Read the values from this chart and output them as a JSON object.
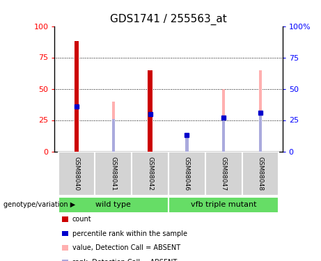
{
  "title": "GDS1741 / 255563_at",
  "samples": [
    "GSM88040",
    "GSM88041",
    "GSM88042",
    "GSM88046",
    "GSM88047",
    "GSM88048"
  ],
  "red_bars": [
    88,
    0,
    65,
    0,
    0,
    0
  ],
  "blue_markers": [
    36,
    0,
    30,
    13,
    27,
    31
  ],
  "pink_bars": [
    36,
    40,
    65,
    13,
    50,
    65
  ],
  "lightblue_bars": [
    36,
    26,
    30,
    13,
    27,
    31
  ],
  "ylim": [
    0,
    100
  ],
  "grid_lines": [
    25,
    50,
    75
  ],
  "red_color": "#CC0000",
  "blue_color": "#0000CC",
  "pink_color": "#FFB0B0",
  "lightblue_color": "#AAAADD",
  "red_bar_width": 0.12,
  "pink_bar_width": 0.08,
  "lightblue_bar_width": 0.08,
  "label_bg_color": "#D3D3D3",
  "group_bg_color": "#66DD66",
  "genotype_label": "genotype/variation",
  "left_yticks": [
    "0",
    "25",
    "50",
    "75",
    "100"
  ],
  "right_yticks": [
    "0",
    "25",
    "50",
    "75",
    "100%"
  ],
  "legend_items": [
    [
      "#CC0000",
      "count"
    ],
    [
      "#0000CC",
      "percentile rank within the sample"
    ],
    [
      "#FFB0B0",
      "value, Detection Call = ABSENT"
    ],
    [
      "#AAAADD",
      "rank, Detection Call = ABSENT"
    ]
  ]
}
